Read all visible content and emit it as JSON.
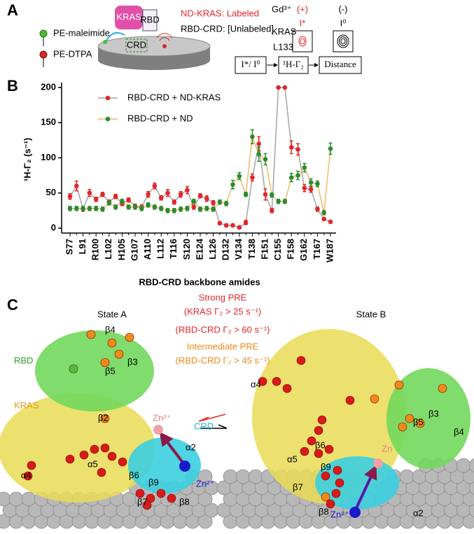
{
  "panel_a": {
    "label": "A",
    "membrane": {
      "kras": "KRAS",
      "rbd": "RBD",
      "crd": "CRD"
    },
    "legend": {
      "maleimide": "PE-maleimide",
      "dtpa": "PE-DTPA"
    },
    "labeling": {
      "nd_kras": "ND-KRAS: Labeled",
      "rbd_crd": "RBD-CRD: [Unlabeled]"
    },
    "nmr": {
      "gd": "Gd³⁺",
      "plus": "(+)",
      "minus": "(-)",
      "i_star": "I*",
      "i_zero": "I⁰",
      "residue": [
        "KRAS",
        "L133"
      ]
    },
    "flow": [
      "I*/ I⁰",
      "¹H-Γ₂",
      "Distance"
    ]
  },
  "chart_data": {
    "type": "line",
    "panel_label": "B",
    "ylabel": "¹H-Γ₂ (s⁻¹)",
    "xlabel": "RBD-CRD backbone amides",
    "categories": [
      "S77",
      null,
      "L91",
      null,
      "R100",
      null,
      "L102",
      null,
      "H105",
      null,
      "G107",
      null,
      "A110",
      null,
      "L112",
      null,
      "T116",
      null,
      "S120",
      null,
      "E124",
      null,
      "L126",
      null,
      "D132",
      null,
      "V134",
      null,
      "T138",
      null,
      "F151",
      null,
      "C155",
      null,
      "F158",
      null,
      "G162",
      null,
      "T167",
      null,
      "W187"
    ],
    "series": [
      {
        "name": "RBD-CRD + ND-KRAS",
        "color": "#e3262a",
        "line_color": "#a3a3a3",
        "values": [
          45,
          60,
          27,
          50,
          41,
          48,
          37,
          45,
          35,
          40,
          31,
          30,
          48,
          60,
          43,
          50,
          37,
          48,
          54,
          30,
          46,
          42,
          36,
          7,
          4,
          4,
          1,
          8,
          72,
          120,
          48,
          25,
          200,
          200,
          115,
          112,
          57,
          55,
          27,
          13,
          9
        ],
        "errors": [
          4,
          7,
          3,
          5,
          3,
          3,
          3,
          3,
          3,
          3,
          3,
          3,
          4,
          4,
          3,
          5,
          3,
          4,
          5,
          3,
          3,
          4,
          3,
          2,
          2,
          2,
          2,
          3,
          5,
          10,
          8,
          3,
          null,
          null,
          9,
          8,
          5,
          4,
          3,
          2,
          2
        ]
      },
      {
        "name": "RBD-CRD + ND",
        "color": "#2e8b2e",
        "line_color": "#f2b868",
        "values": [
          28,
          28,
          28,
          28,
          28,
          27,
          36,
          30,
          38,
          30,
          30,
          28,
          33,
          30,
          28,
          25,
          25,
          27,
          28,
          38,
          27,
          28,
          27,
          37,
          35,
          62,
          74,
          48,
          130,
          105,
          98,
          47,
          38,
          38,
          72,
          75,
          86,
          65,
          63,
          22,
          113
        ],
        "errors": [
          3,
          3,
          3,
          3,
          3,
          3,
          3,
          3,
          3,
          3,
          3,
          3,
          3,
          3,
          3,
          3,
          3,
          3,
          3,
          3,
          3,
          3,
          3,
          3,
          3,
          6,
          5,
          3,
          10,
          10,
          8,
          3,
          3,
          3,
          6,
          6,
          6,
          5,
          4,
          3,
          8
        ]
      }
    ],
    "ylim": [
      -7,
      207
    ],
    "yticks": [
      0,
      50,
      100,
      150,
      200
    ],
    "grid": false,
    "legend": "upper left"
  },
  "panel_c": {
    "label": "C",
    "state_a": "State A",
    "state_b": "State B",
    "key": [
      "Strong PRE",
      "(KRAS Γ₂ > 25 s⁻¹)",
      "(RBD-CRD Γ₂ > 60 s⁻¹)",
      "Intermediate PRE",
      "(RBD-CRD Γ₂ > 45 s⁻¹)"
    ],
    "labels_a": [
      "β4",
      "β3",
      "β5",
      "RBD",
      "KRAS",
      "β2",
      "Zn²⁺",
      "CRD",
      "α2",
      "Zn²⁺",
      "α4",
      "α5",
      "β6",
      "β9",
      "β7",
      "β8"
    ],
    "labels_b": [
      "α4",
      "β3",
      "β5",
      "β4",
      "β6",
      "α5",
      "β9",
      "β7",
      "β8",
      "Zn²⁺",
      "α2",
      "Zn"
    ]
  }
}
